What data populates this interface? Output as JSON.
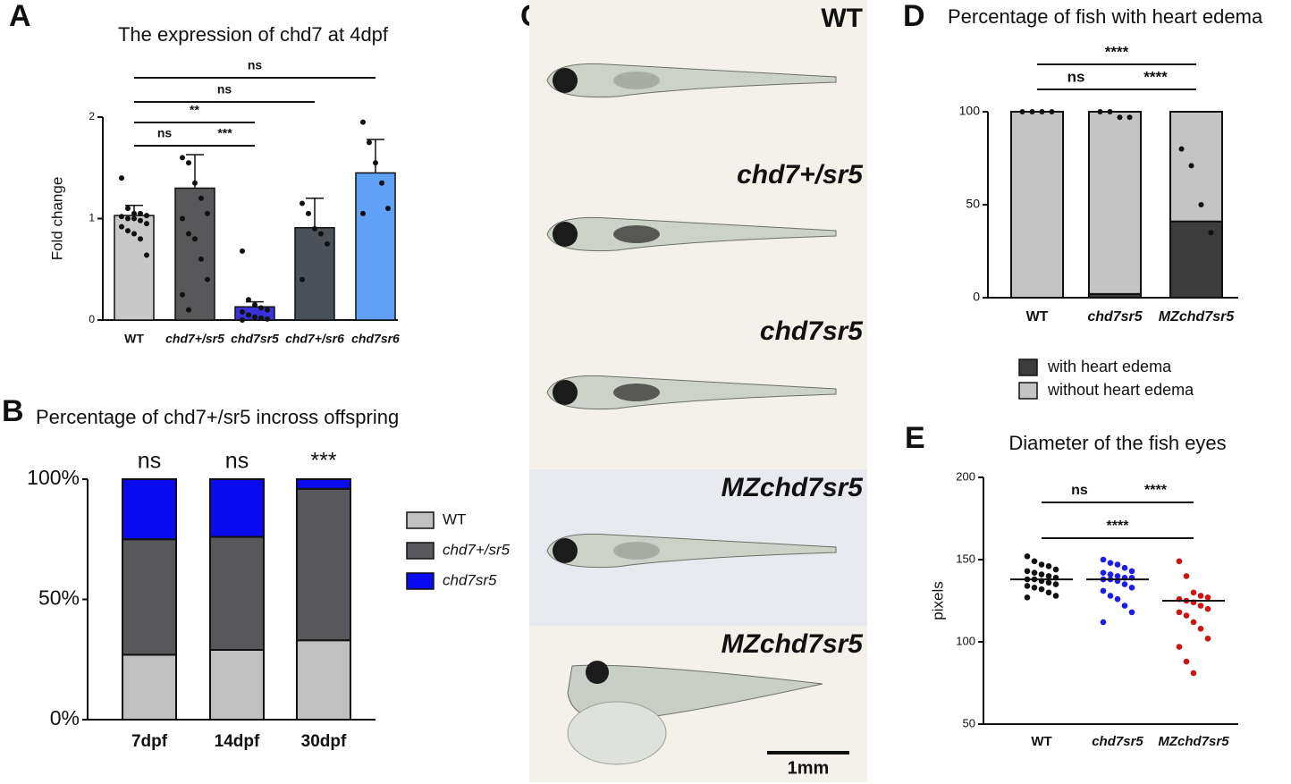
{
  "chart_data": [
    {
      "label": "A",
      "type": "bar",
      "title": "The expression of chd7 at 4dpf",
      "ylabel": "Fold change",
      "categories": [
        "WT",
        "chd7+/sr5",
        "chd7sr5",
        "chd7+/sr6",
        "chd7sr6"
      ],
      "values": [
        1.03,
        1.3,
        0.13,
        0.91,
        1.45
      ],
      "errors": [
        0.1,
        0.33,
        0.05,
        0.29,
        0.33
      ],
      "colors": [
        "#c8c8c8",
        "#58585a",
        "#3a32d8",
        "#4a5158",
        "#5fa1f7"
      ],
      "points": [
        [
          1.4,
          1.1,
          1.05,
          1.05,
          1.03,
          1.02,
          1.0,
          1.0,
          0.98,
          0.95,
          0.92,
          0.88,
          0.85,
          0.8,
          0.64
        ],
        [
          1.6,
          1.55,
          1.35,
          1.2,
          1.05,
          1.0,
          0.85,
          0.8,
          0.6,
          0.4,
          0.25,
          0.1
        ],
        [
          0.68,
          0.2,
          0.15,
          0.12,
          0.1,
          0.08,
          0.05,
          0.03,
          0.02,
          0.01,
          0.0
        ],
        [
          1.15,
          1.05,
          0.9,
          0.85,
          0.75,
          0.4
        ],
        [
          1.95,
          1.75,
          1.55,
          1.35,
          1.1,
          1.05
        ]
      ],
      "ylim": [
        0,
        2
      ],
      "yticks": [
        0,
        1,
        2
      ],
      "annotations": [
        "ns",
        "ns",
        "**",
        "ns",
        "***"
      ]
    },
    {
      "label": "B",
      "type": "stacked_bar",
      "title": "Percentage of chd7+/sr5 incross offspring",
      "categories": [
        "7dpf",
        "14dpf",
        "30dpf"
      ],
      "series": [
        {
          "name": "WT",
          "color": "#c0c0c0",
          "values": [
            27,
            29,
            33
          ]
        },
        {
          "name": "chd7+/sr5",
          "color": "#58585c",
          "values": [
            48,
            47,
            63
          ]
        },
        {
          "name": "chd7sr5",
          "color": "#0a0af0",
          "values": [
            25,
            24,
            4
          ]
        }
      ],
      "ylim": [
        0,
        100
      ],
      "yticks": [
        {
          "value": 0,
          "label": "0%"
        },
        {
          "value": 50,
          "label": "50%"
        },
        {
          "value": 100,
          "label": "100%"
        }
      ],
      "annotations": [
        "ns",
        "ns",
        "***"
      ],
      "legend": "right"
    },
    {
      "label": "D",
      "type": "stacked_bar",
      "title": "Percentage of fish with heart edema",
      "categories": [
        "WT",
        "chd7sr5",
        "MZchd7sr5"
      ],
      "series": [
        {
          "name": "with heart edema",
          "color": "#3c3c3c",
          "values": [
            0,
            2,
            41
          ]
        },
        {
          "name": "without heart edema",
          "color": "#c4c4c4",
          "values": [
            100,
            98,
            59
          ]
        }
      ],
      "points": [
        [
          100,
          100,
          100,
          100
        ],
        [
          100,
          100,
          97,
          97
        ],
        [
          80,
          71,
          50,
          35
        ]
      ],
      "ylim": [
        0,
        100
      ],
      "yticks": [
        0,
        50,
        100
      ],
      "annotations": [
        "****",
        "ns",
        "****"
      ],
      "legend": "bottom"
    },
    {
      "label": "E",
      "type": "strip",
      "title": "Diameter of the fish eyes",
      "ylabel": "pixels",
      "categories": [
        "WT",
        "chd7sr5",
        "MZchd7sr5"
      ],
      "groups": [
        {
          "color": "#111111",
          "median": 138,
          "values": [
            152,
            149,
            147,
            146,
            144,
            143,
            142,
            141,
            140,
            139,
            138,
            138,
            137,
            136,
            135,
            134,
            133,
            132,
            130,
            128,
            127
          ]
        },
        {
          "color": "#1a1aff",
          "median": 138,
          "values": [
            150,
            148,
            147,
            145,
            143,
            142,
            141,
            140,
            139,
            139,
            138,
            138,
            137,
            135,
            133,
            131,
            128,
            126,
            122,
            118,
            112
          ]
        },
        {
          "color": "#d41010",
          "median": 125,
          "values": [
            149,
            140,
            130,
            128,
            127,
            126,
            125,
            124,
            122,
            120,
            118,
            116,
            112,
            108,
            102,
            97,
            88,
            81
          ]
        }
      ],
      "ylim": [
        50,
        200
      ],
      "yticks": [
        50,
        100,
        150,
        200
      ],
      "annotations": [
        "ns",
        "****",
        "****"
      ]
    }
  ],
  "panel_c": {
    "label": "C",
    "captions": [
      "WT",
      "chd7+/sr5",
      "chd7sr5",
      "MZchd7sr5",
      "MZchd7sr5"
    ],
    "scale_bar": "1mm"
  }
}
